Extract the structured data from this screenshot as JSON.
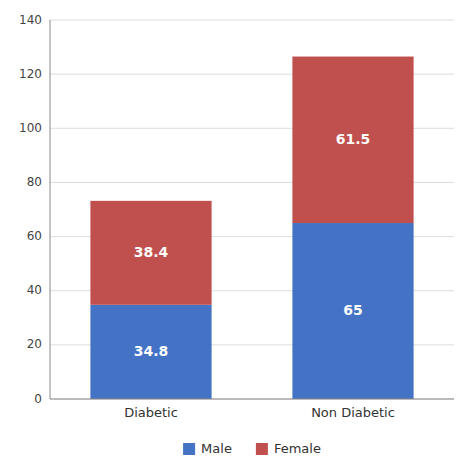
{
  "chart_data": {
    "type": "bar",
    "stacked": true,
    "categories": [
      "Diabetic",
      "Non Diabetic"
    ],
    "series": [
      {
        "name": "Male",
        "color": "#4472C4",
        "values": [
          34.8,
          65.0
        ]
      },
      {
        "name": "Female",
        "color": "#C0504D",
        "values": [
          38.4,
          61.5
        ]
      }
    ],
    "ylim": [
      0,
      140
    ],
    "yticks": [
      0,
      20,
      40,
      60,
      80,
      100,
      120,
      140
    ],
    "grid": true,
    "legend": "bottom",
    "data_labels": true
  }
}
